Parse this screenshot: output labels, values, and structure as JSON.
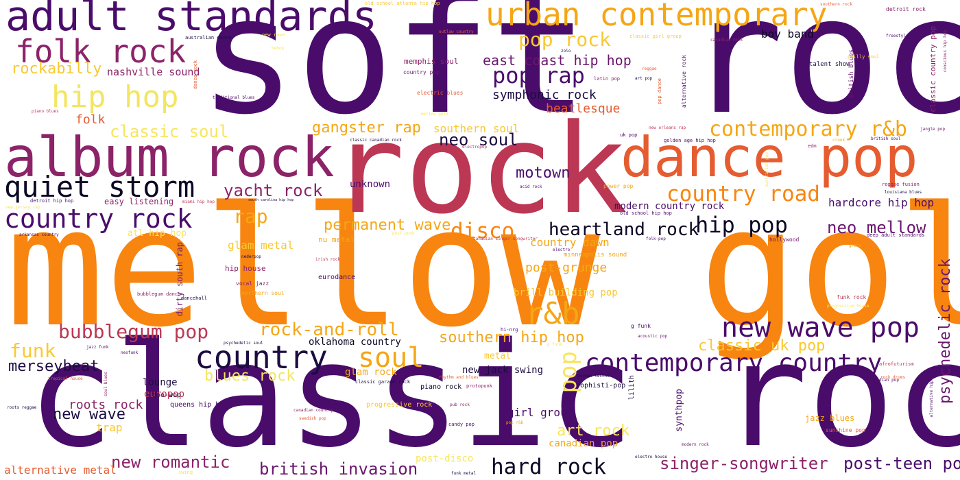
{
  "words": [
    {
      "text": "soft rock",
      "color": "#4a0c6b"
    },
    {
      "text": "mellow gold",
      "color": "#f8850f"
    },
    {
      "text": "classic rock",
      "color": "#4a0c6b"
    },
    {
      "text": "rock",
      "color": "#bc3754"
    },
    {
      "text": "album rock",
      "color": "#8c2369"
    },
    {
      "text": "dance pop",
      "color": "#e55c30"
    },
    {
      "text": "adult standards",
      "color": "#4a0c6b"
    },
    {
      "text": "urban contemporary",
      "color": "#f5a615"
    },
    {
      "text": "folk rock",
      "color": "#8c2369"
    },
    {
      "text": "country",
      "color": "#1b0c41"
    },
    {
      "text": "quiet storm",
      "color": "#0b0724"
    },
    {
      "text": "new wave pop",
      "color": "#4a0c6b"
    },
    {
      "text": "contemporary country",
      "color": "#4a0c6b"
    },
    {
      "text": "hip hop",
      "color": "#f2e661"
    },
    {
      "text": "country rock",
      "color": "#4a0c6b"
    },
    {
      "text": "r&b",
      "color": "#f5a615"
    },
    {
      "text": "soul",
      "color": "#f5a615"
    },
    {
      "text": "bubblegum pop",
      "color": "#bc3754"
    },
    {
      "text": "contemporary r&b",
      "color": "#f5a615"
    },
    {
      "text": "country road",
      "color": "#f8850f"
    },
    {
      "text": "pop rap",
      "color": "#4a0c6b"
    },
    {
      "text": "pop rock",
      "color": "#f8c932"
    },
    {
      "text": "pop",
      "color": "#f7e55e"
    },
    {
      "text": "hard rock",
      "color": "#0b0724"
    },
    {
      "text": "disco",
      "color": "#f8850f"
    },
    {
      "text": "heartland rock",
      "color": "#0b0724"
    },
    {
      "text": "hip pop",
      "color": "#0b0724"
    },
    {
      "text": "rock-and-roll",
      "color": "#f5a615"
    },
    {
      "text": "singer-songwriter",
      "color": "#8c2369"
    },
    {
      "text": "yacht rock",
      "color": "#8c2369"
    },
    {
      "text": "post-teen pop",
      "color": "#4a0c6b"
    },
    {
      "text": "british invasion",
      "color": "#6a176e"
    },
    {
      "text": "new romantic",
      "color": "#8c2369"
    },
    {
      "text": "psychedelic rock",
      "color": "#6a176e"
    },
    {
      "text": "gangster rap",
      "color": "#f5a615"
    },
    {
      "text": "rockabilly",
      "color": "#f8c932"
    },
    {
      "text": "neo mellow",
      "color": "#6a176e"
    },
    {
      "text": "funk",
      "color": "#f8c932"
    },
    {
      "text": "classic uk pop",
      "color": "#f8c932"
    },
    {
      "text": "blues rock",
      "color": "#f2e661"
    },
    {
      "text": "merseybeat",
      "color": "#1b0c41"
    },
    {
      "text": "southern hip hop",
      "color": "#f5a615"
    },
    {
      "text": "east coast hip hop",
      "color": "#6a176e"
    },
    {
      "text": "neo soul",
      "color": "#1b0c41"
    },
    {
      "text": "classic soul",
      "color": "#f7e55e"
    },
    {
      "text": "permanent wave",
      "color": "#f5a615"
    },
    {
      "text": "new wave",
      "color": "#1b0c41"
    },
    {
      "text": "art rock",
      "color": "#f7e55e"
    },
    {
      "text": "motown",
      "color": "#4a0c6b"
    },
    {
      "text": "symphonic rock",
      "color": "#1b0c41"
    },
    {
      "text": "rap",
      "color": "#f5a615"
    },
    {
      "text": "beatlesque",
      "color": "#e55c30"
    },
    {
      "text": "nashville sound",
      "color": "#8c2369"
    },
    {
      "text": "hardcore hip hop",
      "color": "#4a0c6b"
    },
    {
      "text": "roots rock",
      "color": "#8c2369"
    },
    {
      "text": "post-grunge",
      "color": "#f5a615"
    },
    {
      "text": "folk",
      "color": "#e55c30"
    },
    {
      "text": "southern soul",
      "color": "#f8c932"
    },
    {
      "text": "country dawn",
      "color": "#f5a615"
    },
    {
      "text": "glam metal",
      "color": "#f8c932"
    },
    {
      "text": "boy band",
      "color": "#0b0724"
    },
    {
      "text": "alternative metal",
      "color": "#e55c30"
    },
    {
      "text": "girl group",
      "color": "#4a0c6b"
    },
    {
      "text": "trap",
      "color": "#f8c932"
    },
    {
      "text": "canadian pop",
      "color": "#f5a615"
    },
    {
      "text": "modern country rock",
      "color": "#4a0c6b"
    },
    {
      "text": "brill building pop",
      "color": "#f8c932"
    },
    {
      "text": "oklahoma country",
      "color": "#0b0724"
    },
    {
      "text": "glam rock",
      "color": "#f5a615"
    },
    {
      "text": "new jack swing",
      "color": "#1b0c41"
    },
    {
      "text": "unknown",
      "color": "#4a0c6b"
    },
    {
      "text": "lounge",
      "color": "#1b0c41"
    },
    {
      "text": "europop",
      "color": "#bc3754"
    },
    {
      "text": "atl hip hop",
      "color": "#f7e55e"
    },
    {
      "text": "post-disco",
      "color": "#f7e55e"
    },
    {
      "text": "metal",
      "color": "#f8c932"
    },
    {
      "text": "synthpop",
      "color": "#4a0c6b"
    },
    {
      "text": "easy listening",
      "color": "#8c2369"
    },
    {
      "text": "nu metal",
      "color": "#f5a615"
    },
    {
      "text": "progressive rock",
      "color": "#f8c932"
    },
    {
      "text": "memphis soul",
      "color": "#8c2369"
    },
    {
      "text": "dirty south rap",
      "color": "#6a176e"
    },
    {
      "text": "jazz blues",
      "color": "#f5a615"
    },
    {
      "text": "hip house",
      "color": "#8c2369"
    },
    {
      "text": "minneapolis sound",
      "color": "#f5a615"
    },
    {
      "text": "eurodance",
      "color": "#4a0c6b"
    },
    {
      "text": "sophisti-pop",
      "color": "#1b0c41"
    },
    {
      "text": "lilith",
      "color": "#1b0c41"
    },
    {
      "text": "doo-wop",
      "color": "#1b0c41"
    },
    {
      "text": "queens hip hop",
      "color": "#4a0c6b"
    },
    {
      "text": "piano rock",
      "color": "#0b0724"
    },
    {
      "text": "classic country pop",
      "color": "#8c2369"
    },
    {
      "text": "electric blues",
      "color": "#e55c30"
    },
    {
      "text": "country pop",
      "color": "#6a176e"
    },
    {
      "text": "talent show",
      "color": "#1b0c41"
    },
    {
      "text": "british blues",
      "color": "#6a176e"
    },
    {
      "text": "alternative rock",
      "color": "#4a0c6b"
    },
    {
      "text": "detroit rock",
      "color": "#8c2369"
    },
    {
      "text": "philly soul",
      "color": "#f8c932"
    },
    {
      "text": "vocal jazz",
      "color": "#8c2369"
    },
    {
      "text": "northern soul",
      "color": "#f5a615"
    },
    {
      "text": "bubblegum dance",
      "color": "#8c2369"
    },
    {
      "text": "dancehall",
      "color": "#1b0c41"
    },
    {
      "text": "hollywood",
      "color": "#6a176e"
    },
    {
      "text": "sunshine pop",
      "color": "#e55c30"
    },
    {
      "text": "g funk",
      "color": "#4a0c6b"
    },
    {
      "text": "funk rock",
      "color": "#bc3754"
    },
    {
      "text": "deep adult standards",
      "color": "#4a0c6b"
    },
    {
      "text": "old school atlanta hip hop",
      "color": "#f8c932"
    },
    {
      "text": "golden age hip hop",
      "color": "#4a0c6b"
    },
    {
      "text": "australian dance",
      "color": "#1b0c41"
    },
    {
      "text": "old school hip hop",
      "color": "#4a0c6b"
    },
    {
      "text": "new orleans rap",
      "color": "#bc3754"
    },
    {
      "text": "detroit hip hop",
      "color": "#4a0c6b"
    },
    {
      "text": "miami hip hop",
      "color": "#bc3754"
    },
    {
      "text": "south carolina hip hop",
      "color": "#1b0c41"
    },
    {
      "text": "arkansas country",
      "color": "#4a0c6b"
    },
    {
      "text": "canadian singer-songwriter",
      "color": "#bc3754"
    },
    {
      "text": "acid rock",
      "color": "#4a0c6b"
    },
    {
      "text": "power pop",
      "color": "#f5a615"
    },
    {
      "text": "reggae fusion",
      "color": "#8c2369"
    },
    {
      "text": "louisiana blues",
      "color": "#1b0c41"
    },
    {
      "text": "edm",
      "color": "#8c2369"
    },
    {
      "text": "uk pop",
      "color": "#4a0c6b"
    },
    {
      "text": "classic canadian rock",
      "color": "#1b0c41"
    },
    {
      "text": "latin pop",
      "color": "#8c2369"
    },
    {
      "text": "art pop",
      "color": "#1b0c41"
    },
    {
      "text": "pop dance",
      "color": "#e55c30"
    },
    {
      "text": "reggae",
      "color": "#e55c30"
    },
    {
      "text": "outlaw country",
      "color": "#e55c30"
    },
    {
      "text": "dance rock",
      "color": "#e55c30"
    },
    {
      "text": "traditional blues",
      "color": "#4a0c6b"
    },
    {
      "text": "piano blues",
      "color": "#bc3754"
    },
    {
      "text": "classic girl group",
      "color": "#f8c932"
    },
    {
      "text": "canadian rock",
      "color": "#8c2369"
    },
    {
      "text": "freestyle",
      "color": "#4a0c6b"
    },
    {
      "text": "jangle pop",
      "color": "#6a176e"
    },
    {
      "text": "british soul",
      "color": "#4a0c6b"
    },
    {
      "text": "afrofuturism",
      "color": "#bc3754"
    },
    {
      "text": "rock drums",
      "color": "#e55c30"
    },
    {
      "text": "alternative hip hop",
      "color": "#4a0c6b"
    },
    {
      "text": "barbadian pop",
      "color": "#4a0c6b"
    },
    {
      "text": "modern rock",
      "color": "#6a176e"
    },
    {
      "text": "electro house",
      "color": "#1b0c41"
    },
    {
      "text": "candy pop",
      "color": "#4a0c6b"
    },
    {
      "text": "pub rock",
      "color": "#8c2369"
    },
    {
      "text": "pop r&b",
      "color": "#f5a615"
    },
    {
      "text": "protopunk",
      "color": "#8c2369"
    },
    {
      "text": "rhythm and blues",
      "color": "#e55c30"
    },
    {
      "text": "classic garage rock",
      "color": "#1b0c41"
    },
    {
      "text": "canadian country",
      "color": "#8c2369"
    },
    {
      "text": "swedish pop",
      "color": "#e55c30"
    },
    {
      "text": "roots reggae",
      "color": "#1b0c41"
    },
    {
      "text": "tropical house",
      "color": "#e55c30"
    },
    {
      "text": "soul blues",
      "color": "#8c2369"
    },
    {
      "text": "neofunk",
      "color": "#4a0c6b"
    },
    {
      "text": "jazz funk",
      "color": "#4a0c6b"
    },
    {
      "text": "psychedelic soul",
      "color": "#1b0c41"
    },
    {
      "text": "funk metal",
      "color": "#1b0c41"
    },
    {
      "text": "german techno",
      "color": "#1b0c41"
    },
    {
      "text": "acoustic pop",
      "color": "#6a176e"
    },
    {
      "text": "electro",
      "color": "#4a0c6b"
    },
    {
      "text": "nederpop",
      "color": "#1b0c41"
    },
    {
      "text": "irish rock",
      "color": "#bc3754"
    },
    {
      "text": "folk-pop",
      "color": "#4a0c6b"
    },
    {
      "text": "hi-nrg",
      "color": "#4a0c6b"
    },
    {
      "text": "zolo",
      "color": "#1b0c41"
    },
    {
      "text": "southern rock",
      "color": "#e55c30"
    },
    {
      "text": "conscious hip hop",
      "color": "#8c2369"
    },
    {
      "text": "new jersey rap",
      "color": "#f7e55e"
    },
    {
      "text": "australian pop",
      "color": "#f7e55e"
    },
    {
      "text": "crunk",
      "color": "#f5a615"
    },
    {
      "text": "electropop",
      "color": "#bc3754"
    },
    {
      "text": "p funk",
      "color": "#f7e55e"
    },
    {
      "text": "grebo",
      "color": "#f5a615"
    },
    {
      "text": "mellow gold",
      "color": "#f7e55e"
    },
    {
      "text": "post-punk",
      "color": "#f7e55e"
    },
    {
      "text": "new rave",
      "color": "#f7e55e"
    },
    {
      "text": "progressive house",
      "color": "#f7e55e"
    },
    {
      "text": "bebop",
      "color": "#f7e55e"
    },
    {
      "text": "swing",
      "color": "#f7e55e"
    },
    {
      "text": "stomp and holler",
      "color": "#f7e55e"
    }
  ]
}
